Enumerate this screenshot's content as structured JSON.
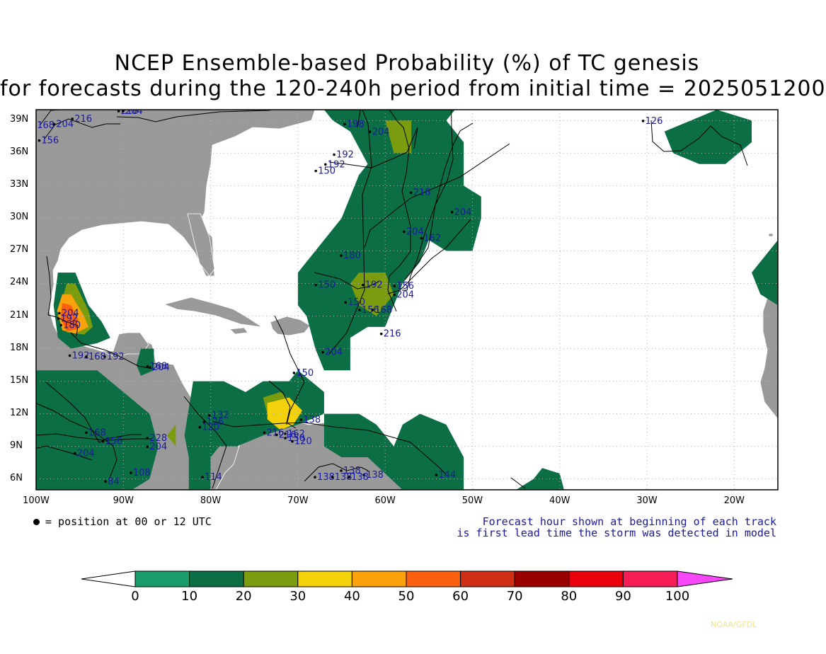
{
  "title_line1": "NCEP Ensemble-based Probability (%) of TC genesis",
  "title_line2": "for forecasts during the 120-240h period from initial time = 2025051200",
  "map": {
    "lon_range": [
      -100,
      -15
    ],
    "lat_range": [
      5,
      40
    ],
    "lon_labels": [
      "100W",
      "90W",
      "80W",
      "70W",
      "60W",
      "50W",
      "40W",
      "30W",
      "20W"
    ],
    "lat_labels": [
      "39N",
      "36N",
      "33N",
      "30N",
      "27N",
      "24N",
      "21N",
      "18N",
      "15N",
      "12N",
      "9N",
      "6N"
    ],
    "colors": {
      "land": "#999999",
      "ocean": "#ffffff",
      "gridline": "#b0b0b0",
      "boundary": "#ffffff",
      "track": "#000000",
      "track_label": "#1a1aa0"
    }
  },
  "position_note": "= position at 00 or 12 UTC",
  "forecast_note_line1": "Forecast hour shown at beginning of each track",
  "forecast_note_line2": "is first lead time the storm was detected in model",
  "colorbar": {
    "labels": [
      "0",
      "10",
      "20",
      "30",
      "40",
      "50",
      "60",
      "70",
      "80",
      "90",
      "100"
    ],
    "colors": [
      "#ffffff",
      "#1a9c6b",
      "#0c6e45",
      "#7a9c0e",
      "#f3d20a",
      "#f9a20b",
      "#fb600e",
      "#cf3015",
      "#990000",
      "#e9000b",
      "#f41e54",
      "#f748f7"
    ]
  },
  "probability_areas": [
    {
      "level": 10,
      "polygons": [
        [
          [
            -97.5,
            25
          ],
          [
            -95.5,
            25
          ],
          [
            -94,
            22
          ],
          [
            -92.5,
            20.5
          ],
          [
            -91.5,
            19
          ],
          [
            -93,
            18.5
          ],
          [
            -96,
            18
          ],
          [
            -97.5,
            19
          ],
          [
            -98,
            22
          ]
        ],
        [
          [
            -88,
            18
          ],
          [
            -86.5,
            18
          ],
          [
            -86.5,
            16
          ],
          [
            -88,
            15.5
          ],
          [
            -88.5,
            16.5
          ]
        ],
        [
          [
            -100,
            16
          ],
          [
            -93,
            16
          ],
          [
            -87,
            12
          ],
          [
            -86,
            9
          ],
          [
            -87,
            6
          ],
          [
            -89,
            5
          ],
          [
            -100,
            5
          ]
        ],
        [
          [
            -82,
            15
          ],
          [
            -78.5,
            15
          ],
          [
            -76,
            14
          ],
          [
            -74,
            15
          ],
          [
            -71,
            15
          ],
          [
            -70,
            16
          ],
          [
            -67,
            14
          ],
          [
            -67,
            12
          ],
          [
            -70,
            11
          ],
          [
            -74,
            10
          ],
          [
            -77,
            9
          ],
          [
            -79,
            9
          ],
          [
            -80,
            8
          ],
          [
            -80,
            5
          ],
          [
            -82.5,
            5
          ],
          [
            -82.5,
            8
          ],
          [
            -83,
            10
          ]
        ],
        [
          [
            -67,
            12
          ],
          [
            -63,
            12
          ],
          [
            -61,
            11
          ],
          [
            -59,
            9
          ],
          [
            -58,
            11
          ],
          [
            -56,
            12
          ],
          [
            -53,
            11
          ],
          [
            -51,
            8
          ],
          [
            -51,
            5
          ],
          [
            -58,
            5
          ],
          [
            -62,
            8
          ],
          [
            -65,
            8
          ],
          [
            -67,
            9
          ]
        ],
        [
          [
            -45,
            5
          ],
          [
            -39.5,
            5
          ],
          [
            -40,
            6.5
          ],
          [
            -42,
            7
          ],
          [
            -43,
            6
          ]
        ],
        [
          [
            -67,
            16
          ],
          [
            -64,
            16
          ],
          [
            -64,
            19
          ],
          [
            -62,
            20
          ],
          [
            -60,
            20
          ],
          [
            -58,
            24
          ],
          [
            -56,
            26
          ],
          [
            -55,
            28
          ],
          [
            -53,
            27
          ],
          [
            -50,
            27
          ],
          [
            -49,
            30
          ],
          [
            -49,
            32
          ],
          [
            -51,
            33
          ],
          [
            -51,
            37
          ],
          [
            -53,
            39
          ],
          [
            -52,
            40
          ],
          [
            -67,
            40
          ],
          [
            -66,
            39
          ],
          [
            -64,
            38
          ],
          [
            -62,
            35
          ],
          [
            -63,
            34
          ],
          [
            -64,
            32
          ],
          [
            -65,
            30
          ],
          [
            -66,
            29
          ],
          [
            -68,
            27
          ],
          [
            -70,
            25
          ],
          [
            -70,
            22
          ],
          [
            -69,
            21
          ],
          [
            -68,
            18
          ]
        ],
        [
          [
            -28,
            38
          ],
          [
            -22,
            40
          ],
          [
            -18,
            39
          ],
          [
            -18,
            37
          ],
          [
            -21,
            35
          ],
          [
            -24,
            35
          ],
          [
            -27,
            36
          ]
        ],
        [
          [
            -18,
            25
          ],
          [
            -15,
            28
          ],
          [
            -15,
            25
          ],
          [
            -15,
            22
          ],
          [
            -17,
            23
          ]
        ]
      ]
    },
    {
      "level": 20,
      "polygons": [
        [
          [
            -96.5,
            24
          ],
          [
            -95.5,
            24
          ],
          [
            -94,
            21.5
          ],
          [
            -93.5,
            20
          ],
          [
            -94.5,
            19.3
          ],
          [
            -96.5,
            19.5
          ],
          [
            -97.5,
            21
          ]
        ],
        [
          [
            -74,
            13.5
          ],
          [
            -72,
            14
          ],
          [
            -70.5,
            13
          ],
          [
            -69.5,
            12
          ],
          [
            -71.5,
            11.8
          ],
          [
            -73.5,
            12
          ]
        ],
        [
          [
            -63,
            25
          ],
          [
            -60,
            25
          ],
          [
            -59,
            23
          ],
          [
            -61,
            21
          ],
          [
            -63,
            22
          ],
          [
            -64,
            24
          ]
        ],
        [
          [
            -60,
            39
          ],
          [
            -57,
            39
          ],
          [
            -57,
            36
          ],
          [
            -59,
            36
          ]
        ],
        [
          [
            -85,
            10
          ],
          [
            -84,
            11
          ],
          [
            -84,
            9
          ]
        ]
      ]
    },
    {
      "level": 30,
      "polygons": [
        [
          [
            -73.5,
            13
          ],
          [
            -71,
            13.5
          ],
          [
            -69.5,
            12.3
          ],
          [
            -70.5,
            11
          ],
          [
            -72,
            10.5
          ],
          [
            -73.5,
            11.5
          ]
        ]
      ]
    },
    {
      "level": 40,
      "polygons": [
        [
          [
            -97,
            23
          ],
          [
            -96,
            23
          ],
          [
            -94.5,
            21
          ],
          [
            -94,
            20
          ],
          [
            -95.5,
            19.4
          ],
          [
            -97,
            19.7
          ],
          [
            -97.6,
            21.5
          ]
        ]
      ]
    },
    {
      "level": 50,
      "polygons": [
        [
          [
            -97,
            22.2
          ],
          [
            -96,
            22
          ],
          [
            -95.2,
            20.8
          ],
          [
            -95.2,
            19.8
          ],
          [
            -96.5,
            19.6
          ],
          [
            -97.2,
            20.8
          ]
        ]
      ]
    }
  ],
  "track_labels": [
    {
      "text": "168",
      "lon": -99.9,
      "lat": 38.3
    },
    {
      "text": "204",
      "lon": -97.7,
      "lat": 38.4
    },
    {
      "text": "216",
      "lon": -95.6,
      "lat": 38.9
    },
    {
      "text": "156",
      "lon": -99.4,
      "lat": 36.9
    },
    {
      "text": "216",
      "lon": -90.3,
      "lat": 39.6
    },
    {
      "text": "204",
      "lon": -89.8,
      "lat": 39.6
    },
    {
      "text": "126",
      "lon": -30.2,
      "lat": 38.7
    },
    {
      "text": "198",
      "lon": -64.4,
      "lat": 38.4
    },
    {
      "text": "204",
      "lon": -61.5,
      "lat": 37.7
    },
    {
      "text": "192",
      "lon": -65.6,
      "lat": 35.6
    },
    {
      "text": "192",
      "lon": -66.6,
      "lat": 34.7
    },
    {
      "text": "150",
      "lon": -67.7,
      "lat": 34.1
    },
    {
      "text": "216",
      "lon": -56.8,
      "lat": 32.1
    },
    {
      "text": "204",
      "lon": -52.1,
      "lat": 30.3
    },
    {
      "text": "204",
      "lon": -57.6,
      "lat": 28.5
    },
    {
      "text": "162",
      "lon": -55.6,
      "lat": 27.9
    },
    {
      "text": "180",
      "lon": -64.8,
      "lat": 26.3
    },
    {
      "text": "150",
      "lon": -67.7,
      "lat": 23.6
    },
    {
      "text": "192",
      "lon": -62.3,
      "lat": 23.6
    },
    {
      "text": "156",
      "lon": -58.7,
      "lat": 23.5
    },
    {
      "text": "204",
      "lon": -58.7,
      "lat": 22.7
    },
    {
      "text": "150",
      "lon": -64.3,
      "lat": 22.0
    },
    {
      "text": "156",
      "lon": -62.7,
      "lat": 21.3
    },
    {
      "text": "168",
      "lon": -61.2,
      "lat": 21.3
    },
    {
      "text": "216",
      "lon": -60.2,
      "lat": 19.1
    },
    {
      "text": "204",
      "lon": -66.9,
      "lat": 17.4
    },
    {
      "text": "150",
      "lon": -70.2,
      "lat": 15.5
    },
    {
      "text": "204",
      "lon": -97.1,
      "lat": 21.0
    },
    {
      "text": "192",
      "lon": -97.2,
      "lat": 20.5
    },
    {
      "text": "180",
      "lon": -96.9,
      "lat": 19.9
    },
    {
      "text": "192",
      "lon": -95.9,
      "lat": 17.1
    },
    {
      "text": "168",
      "lon": -94.0,
      "lat": 17.0
    },
    {
      "text": "192",
      "lon": -91.9,
      "lat": 17.0
    },
    {
      "text": "204",
      "lon": -86.7,
      "lat": 16.0
    },
    {
      "text": "168",
      "lon": -87.0,
      "lat": 16.1
    },
    {
      "text": "132",
      "lon": -79.9,
      "lat": 11.6
    },
    {
      "text": "126",
      "lon": -80.5,
      "lat": 11.0
    },
    {
      "text": "120",
      "lon": -81.0,
      "lat": 10.5
    },
    {
      "text": "216",
      "lon": -73.6,
      "lat": 10.0
    },
    {
      "text": "216",
      "lon": -72.2,
      "lat": 9.8
    },
    {
      "text": "138",
      "lon": -69.4,
      "lat": 11.2
    },
    {
      "text": "162",
      "lon": -71.2,
      "lat": 9.9
    },
    {
      "text": "150",
      "lon": -71.2,
      "lat": 9.5
    },
    {
      "text": "120",
      "lon": -70.4,
      "lat": 9.2
    },
    {
      "text": "168",
      "lon": -94.0,
      "lat": 10.0
    },
    {
      "text": "156",
      "lon": -92.1,
      "lat": 9.2
    },
    {
      "text": "204",
      "lon": -95.3,
      "lat": 8.1
    },
    {
      "text": "228",
      "lon": -87.0,
      "lat": 9.5
    },
    {
      "text": "204",
      "lon": -87.0,
      "lat": 8.7
    },
    {
      "text": "108",
      "lon": -88.9,
      "lat": 6.3
    },
    {
      "text": "84",
      "lon": -91.8,
      "lat": 5.5
    },
    {
      "text": "114",
      "lon": -80.7,
      "lat": 5.9
    },
    {
      "text": "138",
      "lon": -64.8,
      "lat": 6.5
    },
    {
      "text": "138",
      "lon": -62.2,
      "lat": 6.1
    },
    {
      "text": "138",
      "lon": -67.8,
      "lat": 5.9
    },
    {
      "text": "138",
      "lon": -65.8,
      "lat": 5.9
    },
    {
      "text": "138",
      "lon": -63.9,
      "lat": 5.9
    },
    {
      "text": "144",
      "lon": -53.9,
      "lat": 6.1
    }
  ]
}
